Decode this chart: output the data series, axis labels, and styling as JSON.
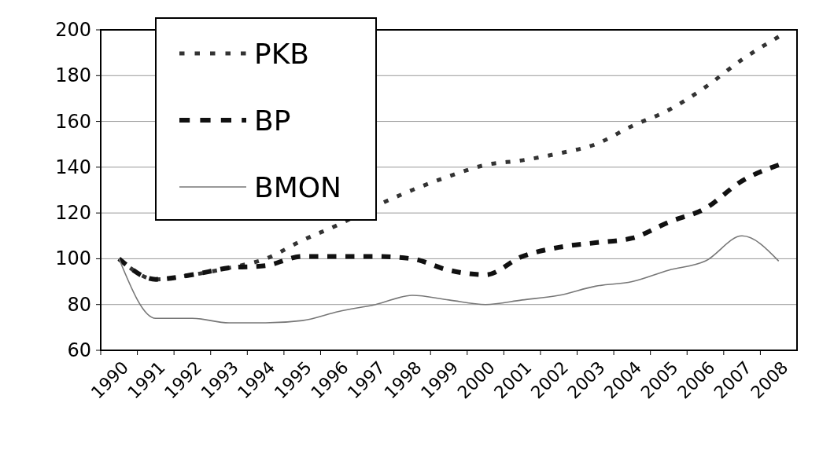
{
  "chart_data": {
    "type": "line",
    "categories": [
      "1990",
      "1991",
      "1992",
      "1993",
      "1994",
      "1995",
      "1996",
      "1997",
      "1998",
      "1999",
      "2000",
      "2001",
      "2002",
      "2003",
      "2004",
      "2005",
      "2006",
      "2007",
      "2008"
    ],
    "series": [
      {
        "name": "PKB",
        "color": "#333333",
        "line_style": "dotted",
        "values": [
          100,
          91,
          93,
          96,
          100,
          108,
          115,
          123,
          130,
          136,
          141,
          143,
          146,
          150,
          158,
          165,
          175,
          187,
          197
        ]
      },
      {
        "name": "BP",
        "color": "#111111",
        "line_style": "dashed",
        "values": [
          100,
          91,
          93,
          96,
          97,
          101,
          101,
          101,
          100,
          95,
          93,
          101,
          105,
          107,
          109,
          116,
          122,
          134,
          141
        ]
      },
      {
        "name": "BMON",
        "color": "#777777",
        "line_style": "solid",
        "values": [
          100,
          74,
          74,
          72,
          72,
          73,
          77,
          80,
          84,
          82,
          80,
          82,
          84,
          88,
          90,
          95,
          99,
          110,
          99
        ]
      }
    ],
    "ylim": [
      60,
      200
    ],
    "yticks": [
      60,
      80,
      100,
      120,
      140,
      160,
      180,
      200
    ],
    "grid": "y",
    "legend": "top left",
    "marker": "none"
  }
}
